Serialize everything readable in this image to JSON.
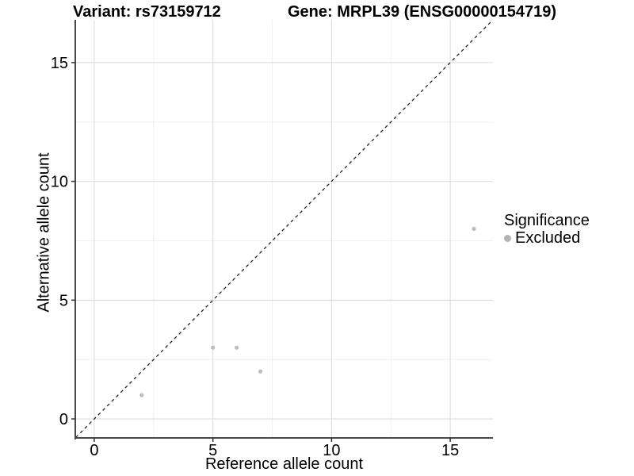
{
  "titles": {
    "variant": "Variant: rs73159712",
    "gene": "Gene: MRPL39 (ENSG00000154719)"
  },
  "chart_data": {
    "type": "scatter",
    "title_left": "Variant: rs73159712",
    "title_right": "Gene: MRPL39 (ENSG00000154719)",
    "xlabel": "Reference allele count",
    "ylabel": "Alternative allele count",
    "xlim": [
      -0.8,
      16.8
    ],
    "ylim": [
      -0.8,
      16.8
    ],
    "major_ticks": [
      0,
      5,
      10,
      15
    ],
    "minor_ticks": [
      2.5,
      7.5,
      12.5
    ],
    "grid": true,
    "series": [
      {
        "name": "Excluded",
        "color": "#bdbdbd",
        "points": [
          [
            2,
            1
          ],
          [
            5,
            3
          ],
          [
            6,
            3
          ],
          [
            7,
            2
          ],
          [
            16,
            8
          ]
        ]
      }
    ],
    "reference_line": {
      "type": "identity",
      "style": "dashed",
      "color": "#202020"
    },
    "legend": {
      "title": "Significance",
      "position": "right",
      "items": [
        {
          "label": "Excluded",
          "color": "#b3b3b3"
        }
      ]
    },
    "colors": {
      "major_grid": "#e2e2e2",
      "minor_grid": "#f0f0f0",
      "axis_line": "#47494c",
      "tick_mark": "#333333",
      "tick_text": "#000000"
    }
  }
}
